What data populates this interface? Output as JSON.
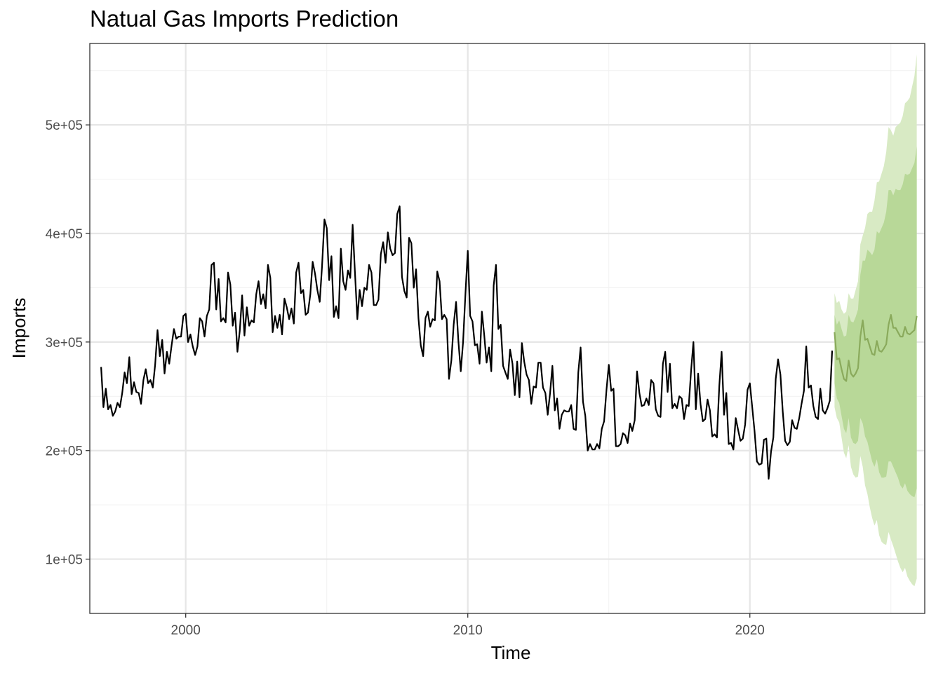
{
  "chart_data": {
    "type": "line",
    "title": "Natual Gas Imports Prediction",
    "xlabel": "Time",
    "ylabel": "Imports",
    "xlim": [
      1996.6,
      2026.2
    ],
    "ylim": [
      50000,
      575000
    ],
    "x_ticks": [
      2000,
      2010,
      2020
    ],
    "x_tick_labels": [
      "2000",
      "2010",
      "2020"
    ],
    "y_ticks": [
      100000,
      200000,
      300000,
      400000,
      500000
    ],
    "y_tick_labels": [
      "1e+05",
      "2e+05",
      "3e+05",
      "4e+05",
      "5e+05"
    ],
    "grid": true,
    "legend": "none",
    "colors": {
      "actual": "#000000",
      "forecast": "#8aaa5c",
      "band80": "#b8d898",
      "band95": "#d8eac4",
      "grid_major": "#e6e6e6",
      "grid_minor": "#f2f2f2",
      "panel_border": "#333333"
    },
    "series": [
      {
        "role": "actual",
        "start": "1997-01",
        "frequency": "monthly",
        "values": [
          277000,
          240000,
          257000,
          238000,
          242000,
          232000,
          236000,
          244000,
          240000,
          253000,
          272000,
          262000,
          286000,
          252000,
          263000,
          254000,
          253000,
          243000,
          265000,
          275000,
          262000,
          265000,
          258000,
          279000,
          311000,
          287000,
          302000,
          271000,
          291000,
          280000,
          297000,
          312000,
          303000,
          305000,
          305000,
          324000,
          326000,
          300000,
          307000,
          296000,
          288000,
          296000,
          322000,
          319000,
          305000,
          324000,
          330000,
          371000,
          373000,
          330000,
          358000,
          319000,
          322000,
          318000,
          364000,
          353000,
          315000,
          327000,
          291000,
          310000,
          343000,
          306000,
          332000,
          315000,
          320000,
          318000,
          344000,
          356000,
          335000,
          344000,
          331000,
          371000,
          359000,
          309000,
          324000,
          313000,
          325000,
          307000,
          340000,
          332000,
          321000,
          331000,
          317000,
          364000,
          373000,
          345000,
          348000,
          325000,
          327000,
          344000,
          374000,
          363000,
          348000,
          337000,
          370000,
          413000,
          405000,
          357000,
          379000,
          323000,
          333000,
          322000,
          386000,
          356000,
          348000,
          366000,
          359000,
          408000,
          364000,
          321000,
          348000,
          333000,
          350000,
          348000,
          371000,
          364000,
          334000,
          334000,
          339000,
          381000,
          392000,
          373000,
          401000,
          386000,
          380000,
          382000,
          418000,
          425000,
          360000,
          347000,
          341000,
          396000,
          391000,
          350000,
          367000,
          322000,
          297000,
          287000,
          322000,
          328000,
          314000,
          321000,
          320000,
          365000,
          356000,
          321000,
          325000,
          321000,
          266000,
          283000,
          316000,
          337000,
          301000,
          273000,
          300000,
          345000,
          384000,
          324000,
          319000,
          297000,
          298000,
          280000,
          328000,
          306000,
          281000,
          295000,
          273000,
          352000,
          371000,
          312000,
          316000,
          278000,
          272000,
          266000,
          293000,
          280000,
          251000,
          282000,
          249000,
          299000,
          282000,
          270000,
          265000,
          243000,
          259000,
          258000,
          281000,
          281000,
          258000,
          253000,
          233000,
          253000,
          278000,
          237000,
          248000,
          220000,
          233000,
          237000,
          236000,
          236000,
          242000,
          220000,
          219000,
          272000,
          295000,
          245000,
          232000,
          200000,
          206000,
          201000,
          201000,
          206000,
          202000,
          220000,
          227000,
          256000,
          279000,
          255000,
          257000,
          204000,
          204000,
          206000,
          216000,
          214000,
          207000,
          225000,
          218000,
          228000,
          273000,
          253000,
          241000,
          242000,
          248000,
          242000,
          265000,
          262000,
          238000,
          232000,
          231000,
          280000,
          291000,
          254000,
          280000,
          239000,
          243000,
          239000,
          250000,
          248000,
          229000,
          242000,
          241000,
          274000,
          300000,
          238000,
          271000,
          243000,
          227000,
          229000,
          247000,
          237000,
          213000,
          215000,
          212000,
          260000,
          291000,
          233000,
          253000,
          206000,
          207000,
          201000,
          230000,
          219000,
          209000,
          211000,
          224000,
          256000,
          262000,
          240000,
          218000,
          190000,
          187000,
          188000,
          210000,
          211000,
          174000,
          199000,
          212000,
          266000,
          284000,
          270000,
          236000,
          209000,
          205000,
          208000,
          228000,
          221000,
          220000,
          230000,
          243000,
          255000,
          296000,
          258000,
          260000,
          241000,
          231000,
          229000,
          257000,
          237000,
          234000,
          239000,
          246000,
          292000
        ]
      },
      {
        "role": "forecast",
        "start": "2023-01",
        "frequency": "monthly",
        "values": [
          309000,
          284000,
          285000,
          275000,
          266000,
          264000,
          283000,
          271000,
          268000,
          271000,
          276000,
          305000,
          320000,
          302000,
          303000,
          296000,
          289000,
          288000,
          301000,
          292000,
          291000,
          294000,
          298000,
          316000,
          325000,
          313000,
          313000,
          309000,
          305000,
          305000,
          314000,
          308000,
          307000,
          309000,
          311000,
          324000
        ],
        "lo80": [
          262000,
          248000,
          244000,
          232000,
          220000,
          216000,
          230000,
          212000,
          207000,
          206000,
          209000,
          230000,
          225000,
          213000,
          208000,
          199000,
          190000,
          185000,
          192000,
          180000,
          175000,
          175000,
          176000,
          190000,
          190000,
          185000,
          180000,
          175000,
          168000,
          165000,
          170000,
          163000,
          160000,
          158000,
          157000,
          165000
        ],
        "hi80": [
          325000,
          316000,
          320000,
          312000,
          305000,
          306000,
          325000,
          319000,
          318000,
          323000,
          330000,
          362000,
          375000,
          375000,
          385000,
          383000,
          380000,
          385000,
          402000,
          400000,
          405000,
          410000,
          420000,
          440000,
          440000,
          435000,
          441000,
          440000,
          440000,
          445000,
          455000,
          454000,
          455000,
          460000,
          465000,
          480000
        ],
        "lo95": [
          240000,
          230000,
          226000,
          212000,
          198000,
          193000,
          205000,
          185000,
          178000,
          175000,
          176000,
          195000,
          185000,
          168000,
          160000,
          148000,
          138000,
          131000,
          136000,
          122000,
          116000,
          114000,
          113000,
          125000,
          118000,
          112000,
          105000,
          98000,
          92000,
          88000,
          92000,
          84000,
          80000,
          77000,
          75000,
          82000
        ],
        "hi95": [
          345000,
          336000,
          338000,
          330000,
          326000,
          328000,
          345000,
          340000,
          340000,
          348000,
          356000,
          390000,
          398000,
          405000,
          418000,
          420000,
          420000,
          430000,
          447000,
          448000,
          455000,
          462000,
          475000,
          498000,
          495000,
          490000,
          498000,
          500000,
          502000,
          508000,
          520000,
          522000,
          525000,
          535000,
          545000,
          565000
        ]
      }
    ]
  }
}
